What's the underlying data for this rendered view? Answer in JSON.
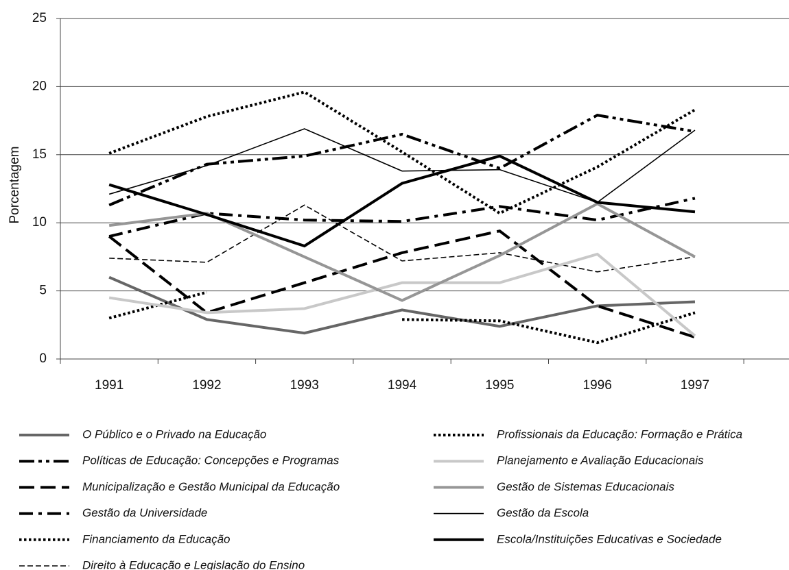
{
  "chart_data": {
    "type": "line",
    "y_label": "Porcentagem",
    "categories": [
      "1991",
      "1992",
      "1993",
      "1994",
      "1995",
      "1996",
      "1997"
    ],
    "ylim": [
      0,
      25
    ],
    "yticks": [
      0,
      5,
      10,
      15,
      20,
      25
    ],
    "grid": true,
    "series": [
      {
        "name": "O Público e o Privado na Educação",
        "color": "#666666",
        "style": "solid",
        "weight": "thick",
        "values": [
          6.0,
          2.9,
          1.9,
          3.6,
          2.4,
          3.9,
          4.2
        ]
      },
      {
        "name": "Políticas de Educação: Concepções e Programas",
        "color": "#000000",
        "style": "dash-dot-dot",
        "weight": "thick",
        "values": [
          11.3,
          14.3,
          14.9,
          16.5,
          14.0,
          17.9,
          16.7
        ]
      },
      {
        "name": "Municipalização e Gestão Municipal da Educação",
        "color": "#000000",
        "style": "long-dash",
        "weight": "thick",
        "values": [
          9.0,
          3.4,
          5.6,
          7.8,
          9.4,
          3.9,
          1.6
        ]
      },
      {
        "name": "Gestão da Universidade",
        "color": "#000000",
        "style": "dash-dot",
        "weight": "thick",
        "values": [
          9.0,
          10.7,
          10.2,
          10.1,
          11.2,
          10.2,
          11.8
        ]
      },
      {
        "name": "Financiamento da Educação",
        "color": "#000000",
        "style": "dot",
        "weight": "thick",
        "values": [
          3.0,
          4.9,
          null,
          2.9,
          2.8,
          1.2,
          3.4
        ]
      },
      {
        "name": "Direito à Educação e Legislação do Ensino",
        "color": "#000000",
        "style": "dash",
        "weight": "thin",
        "values": [
          7.4,
          7.1,
          11.3,
          7.2,
          7.8,
          6.4,
          7.5
        ]
      },
      {
        "name": "Profissionais da Educação: Formação e Prática",
        "color": "#000000",
        "style": "dot",
        "weight": "thick",
        "values": [
          15.1,
          17.8,
          19.6,
          15.2,
          10.7,
          14.1,
          18.3
        ]
      },
      {
        "name": "Planejamento e Avaliação Educacionais",
        "color": "#c8c8c8",
        "style": "solid",
        "weight": "thick",
        "values": [
          4.5,
          3.4,
          3.7,
          5.6,
          5.6,
          7.7,
          1.7
        ]
      },
      {
        "name": "Gestão de Sistemas Educacionais",
        "color": "#969696",
        "style": "solid",
        "weight": "thick",
        "values": [
          9.8,
          10.7,
          7.5,
          4.3,
          7.6,
          11.4,
          7.5
        ]
      },
      {
        "name": "Gestão da Escola",
        "color": "#000000",
        "style": "solid",
        "weight": "thin",
        "values": [
          12.1,
          14.2,
          16.9,
          13.8,
          13.9,
          11.5,
          16.8
        ]
      },
      {
        "name": "Escola/Instituições Educativas e Sociedade",
        "color": "#000000",
        "style": "solid",
        "weight": "thick",
        "values": [
          12.8,
          10.6,
          8.3,
          12.9,
          14.9,
          11.5,
          10.8
        ]
      }
    ]
  }
}
